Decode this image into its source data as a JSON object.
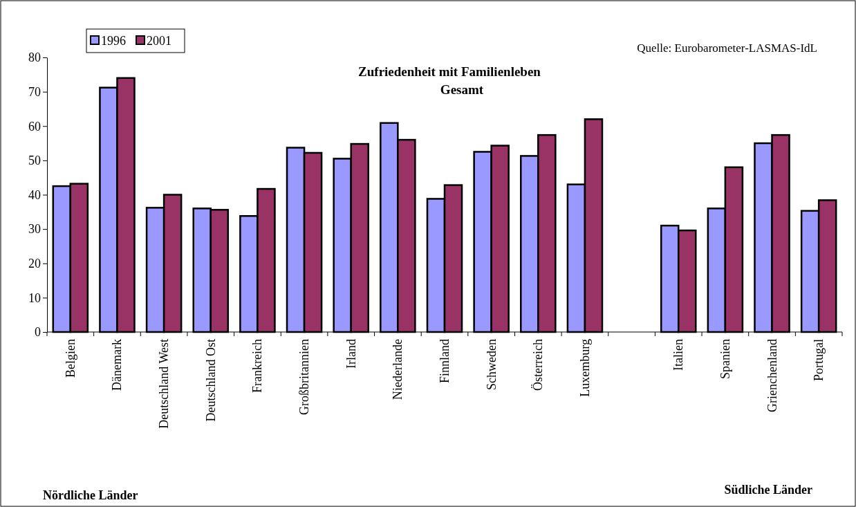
{
  "chart_data": {
    "type": "bar",
    "title": "Zufriedenheit mit Familienleben\nGesamt",
    "categories": [
      "Belgien",
      "Dänemark",
      "Deutschland West",
      "Deutschland Ost",
      "Frankreich",
      "Großbritannien",
      "Irland",
      "Niederlande",
      "Finnland",
      "Schweden",
      "Österreich",
      "Luxemburg",
      null,
      "Italien",
      "Spanien",
      "Grienchenland",
      "Portugal"
    ],
    "series": [
      {
        "name": "1996",
        "color": "#9999ff",
        "values": [
          42.5,
          71.2,
          36.2,
          36,
          33.8,
          53.7,
          50.5,
          60.9,
          38.8,
          52.5,
          51.3,
          43,
          null,
          31,
          36,
          55,
          35.3
        ]
      },
      {
        "name": "2001",
        "color": "#993366",
        "values": [
          43.2,
          74,
          40,
          35.6,
          41.7,
          52.2,
          54.8,
          56,
          42.8,
          54.3,
          57.4,
          62,
          null,
          29.6,
          48,
          57.4,
          38.4
        ]
      }
    ],
    "ylim": [
      0,
      80
    ],
    "yticks": [
      0,
      10,
      20,
      30,
      40,
      50,
      60,
      70,
      80
    ],
    "grid": false,
    "legend": "top left",
    "annotations": [
      "Quelle: Eurobarometer-LASMAS-IdL",
      "Nördliche Länder",
      "Südliche Länder"
    ]
  }
}
